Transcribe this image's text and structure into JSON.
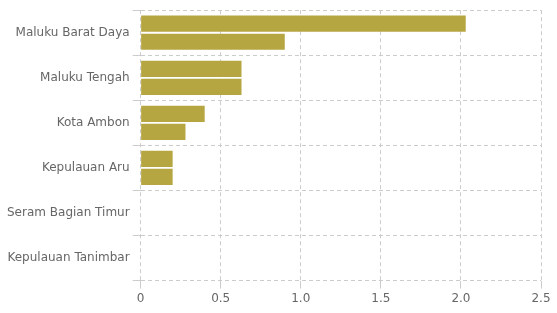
{
  "chart_data": {
    "type": "bar",
    "orientation": "horizontal",
    "categories": [
      "Kepulauan Tanimbar",
      "Seram Bagian Timur",
      "Kepulauan Aru",
      "Kota Ambon",
      "Maluku Tengah",
      "Maluku Barat Daya"
    ],
    "series": [
      {
        "color": "#b5a642",
        "values": [
          0.0,
          0.0,
          0.2,
          0.4,
          0.63,
          2.03
        ]
      },
      {
        "color": "#b5a642",
        "values": [
          0.0,
          0.0,
          0.2,
          0.28,
          0.63,
          0.9
        ]
      }
    ],
    "xlim": [
      0,
      2.5
    ],
    "xticks": [
      0,
      0.5,
      {
        "value": 1.0,
        "label": "1.0"
      },
      1.5,
      {
        "value": 2.0,
        "label": "2.0"
      },
      2.5
    ],
    "grid": true
  }
}
